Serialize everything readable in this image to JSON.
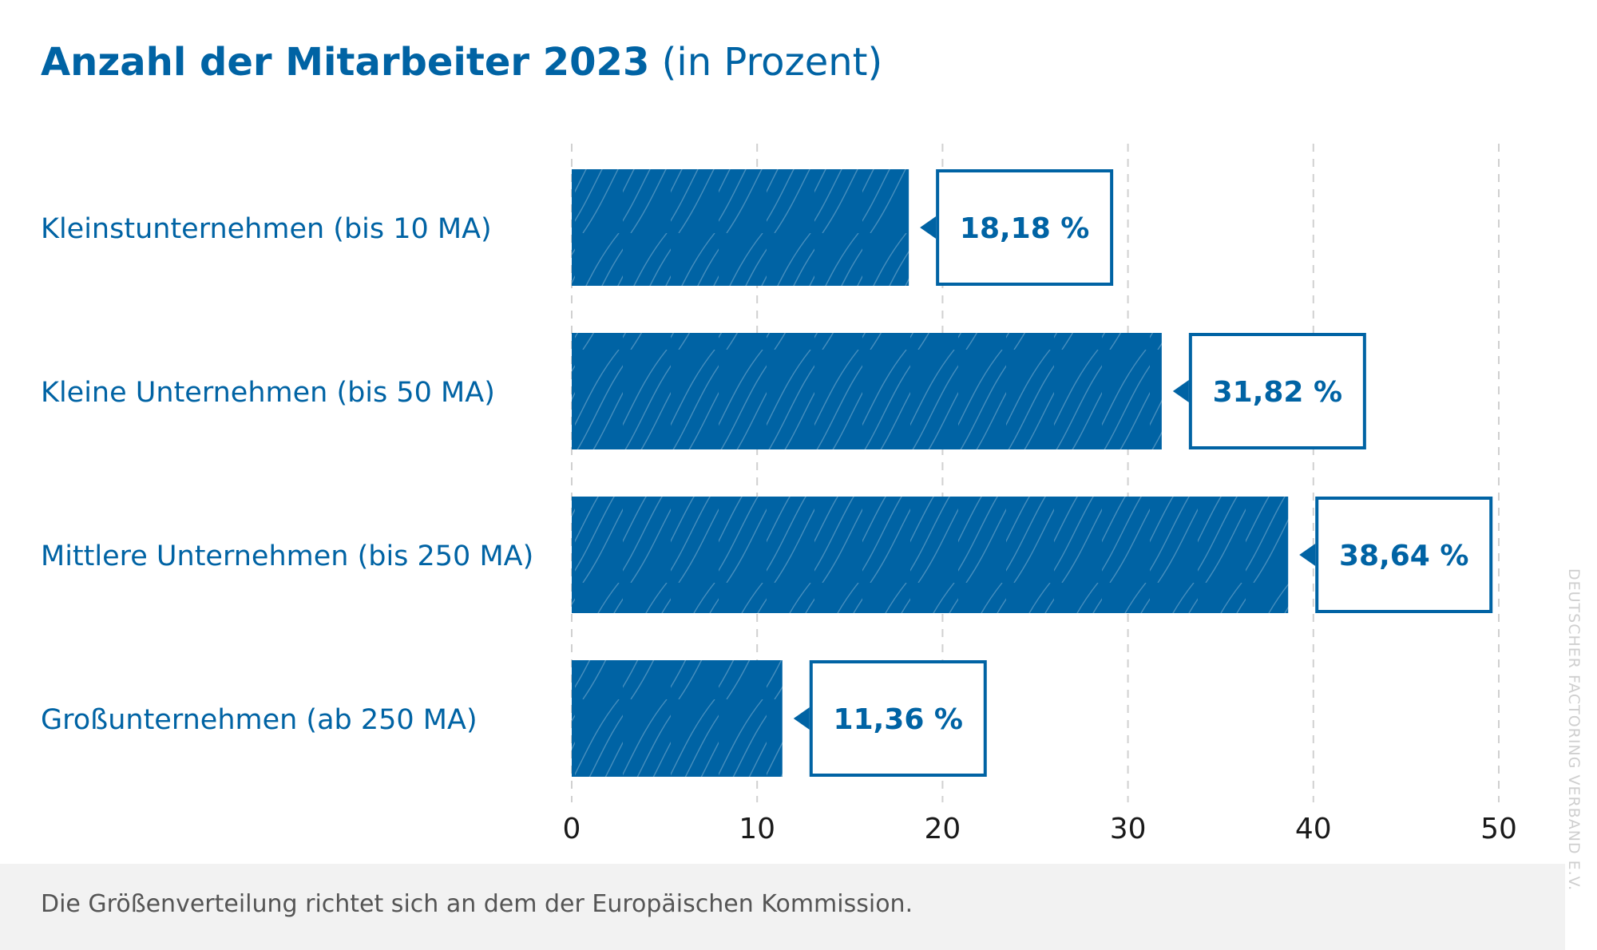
{
  "title": {
    "main": "Anzahl der Mitarbeiter 2023",
    "sub": "(in Prozent)"
  },
  "colors": {
    "primary": "#0063a4",
    "grid": "#d0d0d0",
    "axis_text": "#1a1a1a"
  },
  "chart_data": {
    "type": "bar",
    "orientation": "horizontal",
    "title": "Anzahl der Mitarbeiter 2023 (in Prozent)",
    "categories": [
      "Kleinstunternehmen (bis 10 MA)",
      "Kleine Unternehmen (bis 50 MA)",
      "Mittlere Unternehmen (bis 250 MA)",
      "Großunternehmen (ab 250 MA)"
    ],
    "values": [
      18.18,
      31.82,
      38.64,
      11.36
    ],
    "value_labels": [
      "18,18 %",
      "31,82 %",
      "38,64 %",
      "11,36 %"
    ],
    "xlim": [
      0,
      50
    ],
    "xticks": [
      0,
      10,
      20,
      30,
      40,
      50
    ],
    "xtick_labels": [
      "0",
      "10",
      "20",
      "30",
      "40",
      "50"
    ],
    "grid": "vertical dashed",
    "legend": "none"
  },
  "footer": {
    "note": "Die Größenverteilung richtet sich an dem der Europäischen Kommission."
  },
  "credit": "DEUTSCHER FACTORING VERBAND E.V."
}
